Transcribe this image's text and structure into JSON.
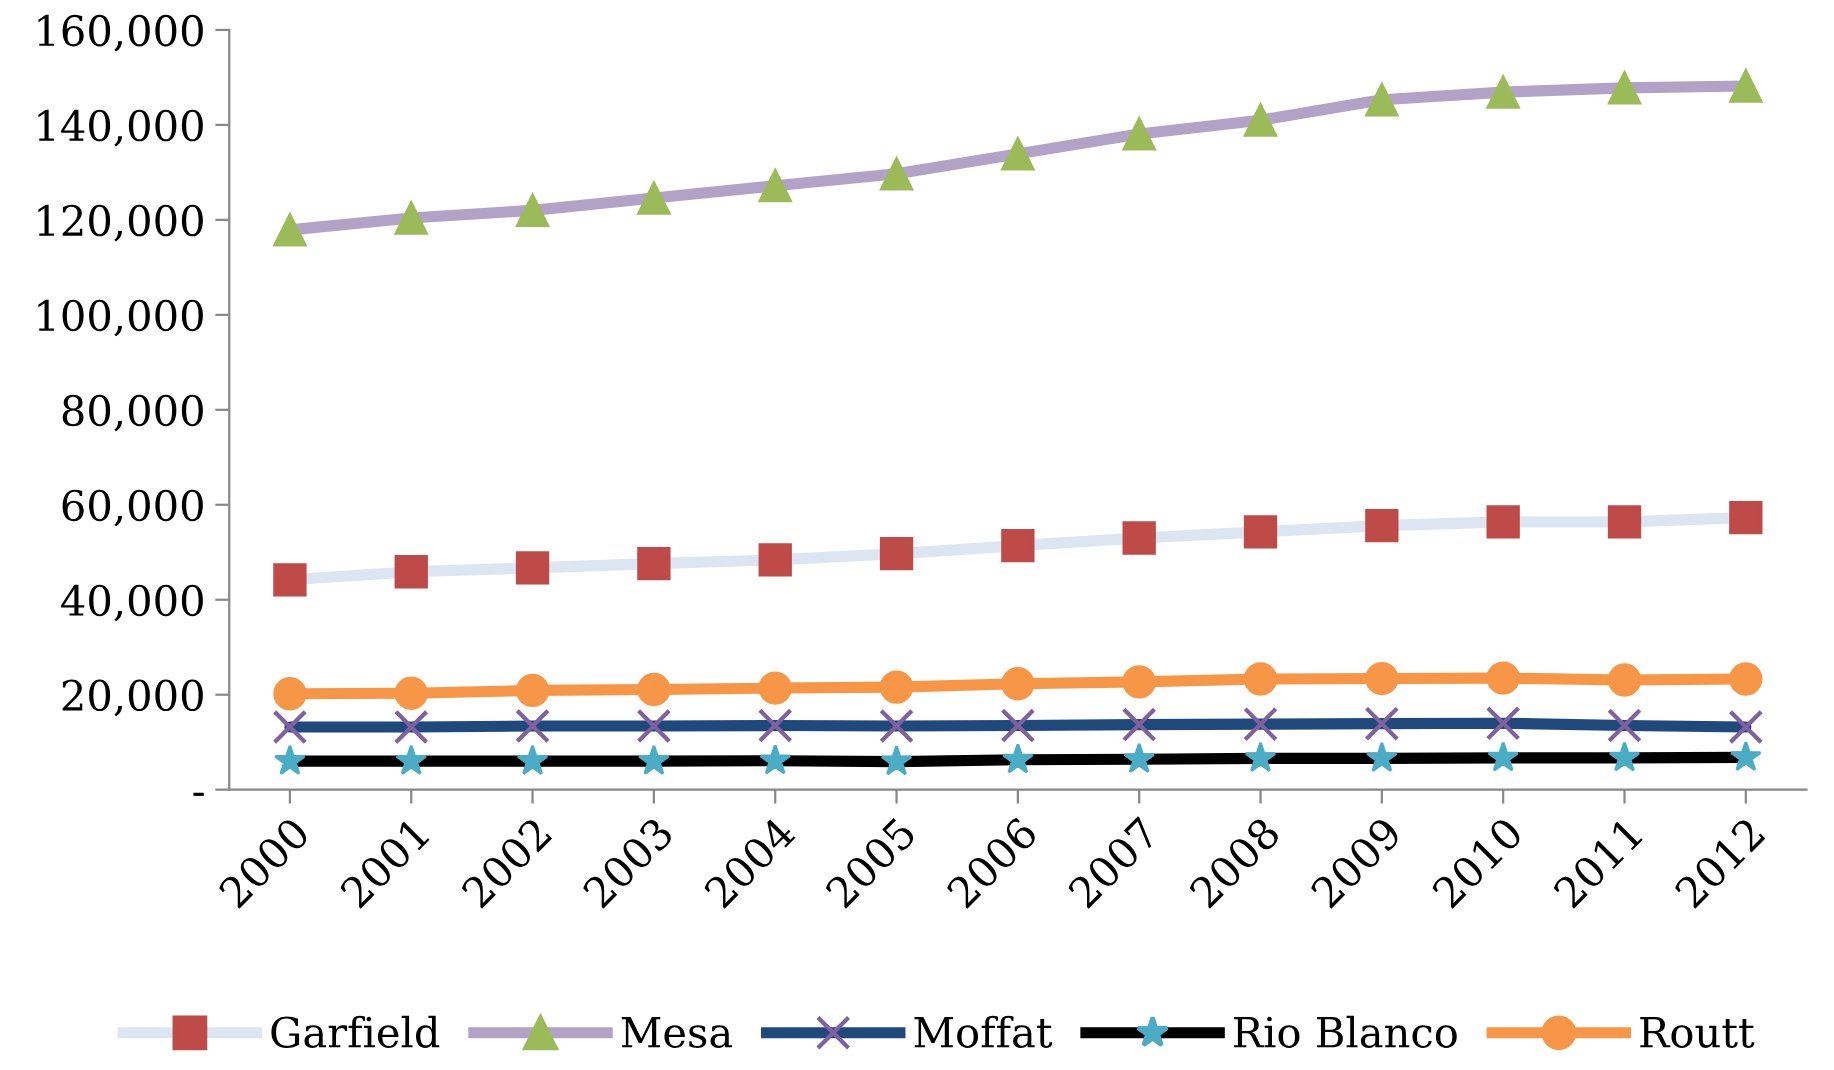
{
  "chart_data": {
    "type": "line",
    "categories": [
      "2000",
      "2001",
      "2002",
      "2003",
      "2004",
      "2005",
      "2006",
      "2007",
      "2008",
      "2009",
      "2010",
      "2011",
      "2012"
    ],
    "series": [
      {
        "name": "Garfield",
        "color": "#dce6f2",
        "marker": "square",
        "colors": [
          "#be4b48",
          "#be4b48",
          "#be4b48",
          "#be4b48",
          "#be4b48",
          "#be4b48",
          "#be4b48",
          "#be4b48",
          "#be4b48",
          "#be4b48",
          "#be4b48",
          "#be4b48",
          "#be4b48"
        ],
        "values": [
          44200,
          45900,
          46700,
          47600,
          48400,
          49700,
          51400,
          53000,
          54300,
          55600,
          56400,
          56400,
          57300
        ]
      },
      {
        "name": "Mesa",
        "color": "#b3a2c7",
        "marker": "triangle",
        "colors": [
          "#9bbb59",
          "#9bbb59",
          "#9bbb59",
          "#9bbb59",
          "#9bbb59",
          "#9bbb59",
          "#9bbb59",
          "#9bbb59",
          "#9bbb59",
          "#9bbb59",
          "#9bbb59",
          "#9bbb59",
          "#9bbb59"
        ],
        "values": [
          117900,
          120400,
          122000,
          124600,
          127200,
          129700,
          133900,
          138100,
          141000,
          145300,
          146900,
          147800,
          148200
        ]
      },
      {
        "name": "Moffat",
        "color": "#1f497d",
        "marker": "cross",
        "colors": [
          "#7f60a0",
          "#7f60a0",
          "#7f60a0",
          "#7f60a0",
          "#7f60a0",
          "#7f60a0",
          "#7f60a0",
          "#7f60a0",
          "#7f60a0",
          "#7f60a0",
          "#7f60a0",
          "#7f60a0",
          "#7f60a0"
        ],
        "values": [
          13200,
          13200,
          13400,
          13400,
          13500,
          13400,
          13500,
          13700,
          13800,
          13900,
          14000,
          13500,
          13200
        ]
      },
      {
        "name": "Rio Blanco",
        "color": "#000000",
        "marker": "star",
        "colors": [
          "#4bacc6",
          "#4bacc6",
          "#4bacc6",
          "#4bacc6",
          "#4bacc6",
          "#4bacc6",
          "#4bacc6",
          "#4bacc6",
          "#4bacc6",
          "#4bacc6",
          "#4bacc6",
          "#4bacc6",
          "#4bacc6"
        ],
        "values": [
          6000,
          6000,
          6000,
          6000,
          6100,
          5900,
          6300,
          6400,
          6600,
          6600,
          6700,
          6700,
          6800
        ]
      },
      {
        "name": "Routt",
        "color": "#f79646",
        "marker": "circle",
        "colors": [
          "#f79646",
          "#f79646",
          "#f79646",
          "#f79646",
          "#f79646",
          "#f79646",
          "#f79646",
          "#f79646",
          "#f79646",
          "#f79646",
          "#f79646",
          "#f79646",
          "#f79646"
        ],
        "values": [
          20200,
          20300,
          20900,
          21100,
          21400,
          21600,
          22300,
          22700,
          23300,
          23400,
          23500,
          23100,
          23300
        ]
      }
    ],
    "ylim": [
      0,
      160000
    ],
    "yticks": [
      {
        "value": 0,
        "label": "-"
      },
      {
        "value": 20000,
        "label": "20,000"
      },
      {
        "value": 40000,
        "label": "40,000"
      },
      {
        "value": 60000,
        "label": "60,000"
      },
      {
        "value": 80000,
        "label": "80,000"
      },
      {
        "value": 100000,
        "label": "100,000"
      },
      {
        "value": 120000,
        "label": "120,000"
      },
      {
        "value": 140000,
        "label": "140,000"
      },
      {
        "value": 160000,
        "label": "160,000"
      }
    ],
    "grid": false,
    "legend": "bottom",
    "line_style": "solid"
  }
}
